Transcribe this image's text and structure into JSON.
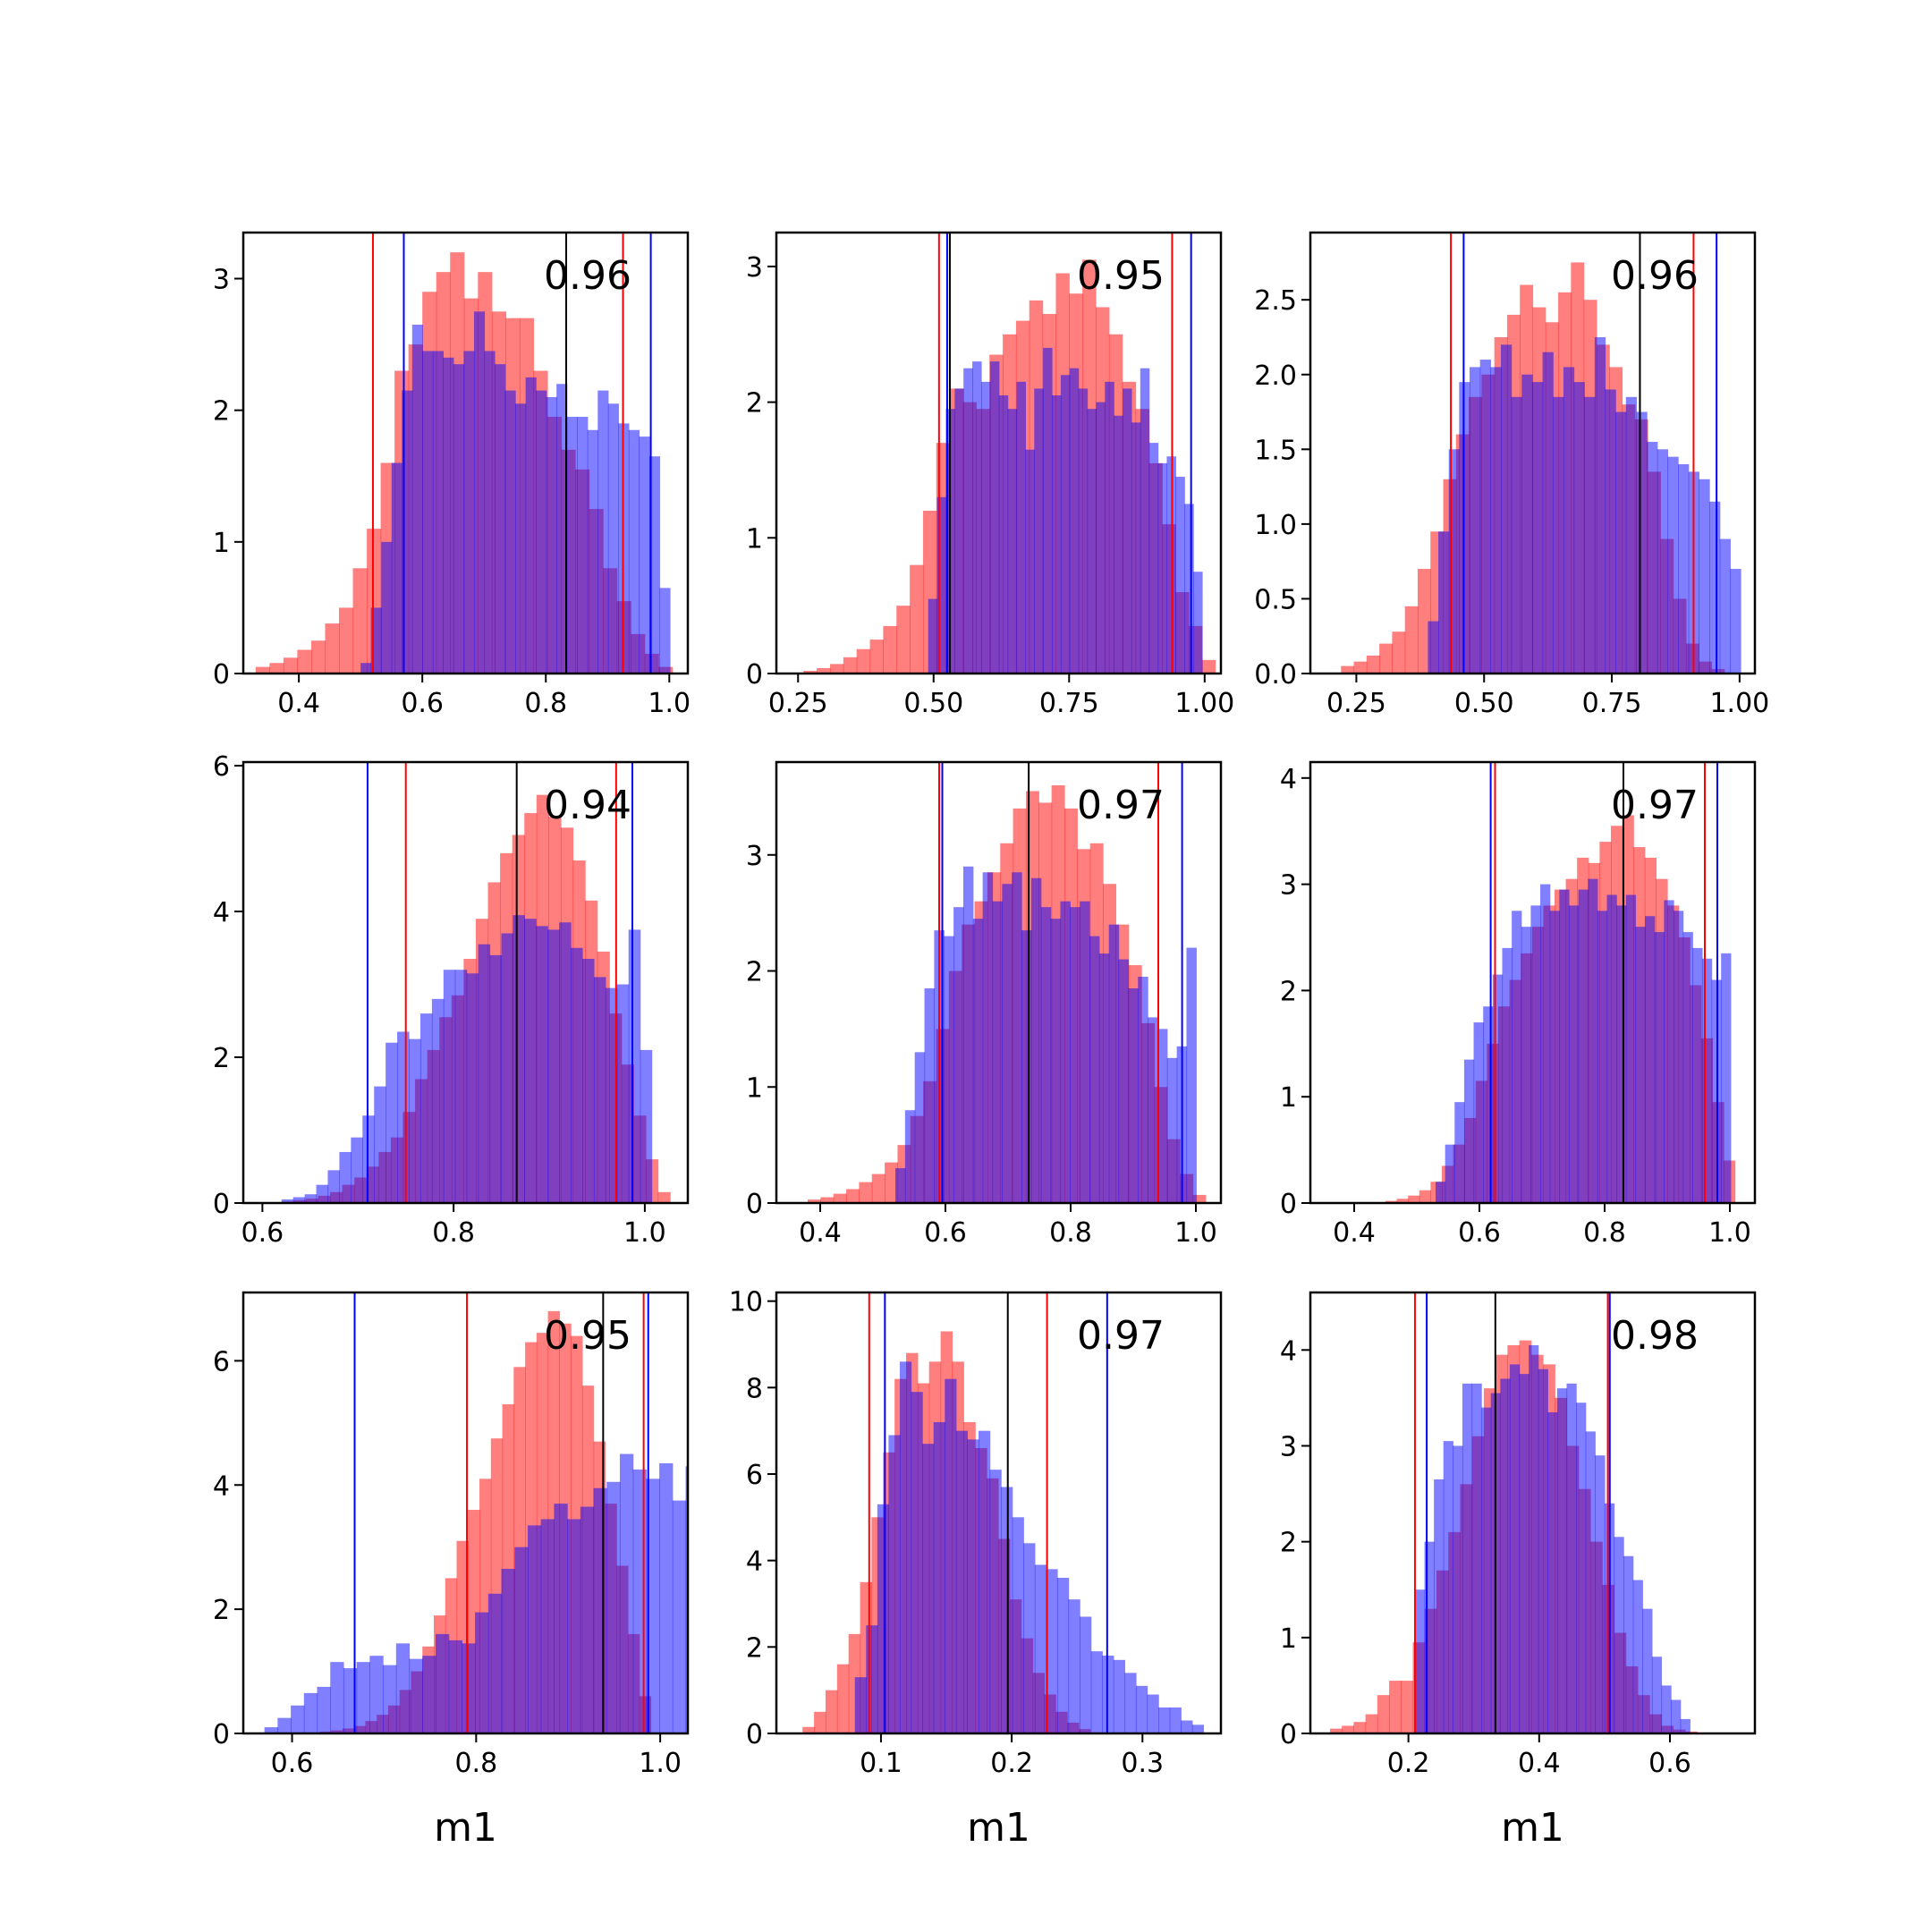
{
  "figure": {
    "colors": {
      "red_hist": "#ff0000",
      "blue_hist": "#0000ff",
      "red_line": "#ff0000",
      "blue_line": "#0000ff",
      "median_line": "#000000",
      "hist_alpha": 0.5
    }
  },
  "chart_data": [
    {
      "type": "histogram",
      "annotation": "0.96",
      "xlabel": "",
      "xlim": [
        0.31,
        1.03
      ],
      "ylim": [
        0,
        3.35
      ],
      "xticks": [
        {
          "v": 0.4,
          "label": "0.4"
        },
        {
          "v": 0.6,
          "label": "0.6"
        },
        {
          "v": 0.8,
          "label": "0.8"
        },
        {
          "v": 1.0,
          "label": "1.0"
        }
      ],
      "yticks": [
        {
          "v": 0,
          "label": "0"
        },
        {
          "v": 1,
          "label": "1"
        },
        {
          "v": 2,
          "label": "2"
        },
        {
          "v": 3,
          "label": "3"
        }
      ],
      "red": {
        "bin_start": 0.33,
        "bin_width": 0.0225,
        "values": [
          0.05,
          0.08,
          0.12,
          0.18,
          0.25,
          0.38,
          0.5,
          0.8,
          1.1,
          1.6,
          2.3,
          2.5,
          2.9,
          3.05,
          3.2,
          2.85,
          3.05,
          2.75,
          2.7,
          2.7,
          2.3,
          1.95,
          1.7,
          1.55,
          1.25,
          0.8,
          0.55,
          0.3,
          0.15,
          0.05
        ]
      },
      "blue": {
        "bin_start": 0.5,
        "bin_width": 0.0167,
        "values": [
          0.08,
          0.5,
          1.0,
          1.6,
          2.15,
          2.65,
          2.45,
          2.45,
          2.4,
          2.35,
          2.45,
          2.75,
          2.45,
          2.35,
          2.15,
          2.05,
          2.25,
          2.15,
          2.1,
          2.2,
          1.95,
          1.95,
          1.85,
          2.15,
          2.05,
          1.9,
          1.85,
          1.8,
          1.65,
          0.65
        ]
      },
      "vlines": {
        "red": [
          0.52,
          0.925
        ],
        "blue": [
          0.57,
          0.97
        ],
        "median": [
          0.833
        ]
      }
    },
    {
      "type": "histogram",
      "annotation": "0.95",
      "xlabel": "",
      "xlim": [
        0.21,
        1.03
      ],
      "ylim": [
        0,
        3.25
      ],
      "xticks": [
        {
          "v": 0.25,
          "label": "0.25"
        },
        {
          "v": 0.5,
          "label": "0.50"
        },
        {
          "v": 0.75,
          "label": "0.75"
        },
        {
          "v": 1.0,
          "label": "1.00"
        }
      ],
      "yticks": [
        {
          "v": 0,
          "label": "0"
        },
        {
          "v": 1,
          "label": "1"
        },
        {
          "v": 2,
          "label": "2"
        },
        {
          "v": 3,
          "label": "3"
        }
      ],
      "red": {
        "bin_start": 0.26,
        "bin_width": 0.0245,
        "values": [
          0.02,
          0.04,
          0.07,
          0.12,
          0.18,
          0.25,
          0.35,
          0.5,
          0.8,
          1.2,
          1.7,
          2.1,
          2.0,
          1.95,
          2.35,
          2.5,
          2.6,
          2.75,
          2.65,
          2.95,
          2.8,
          3.05,
          2.7,
          2.5,
          2.15,
          1.95,
          1.55,
          1.1,
          0.6,
          0.35,
          0.1
        ]
      },
      "blue": {
        "bin_start": 0.49,
        "bin_width": 0.0163,
        "values": [
          0.55,
          1.3,
          1.95,
          2.1,
          2.25,
          2.3,
          2.15,
          2.3,
          2.05,
          1.95,
          2.15,
          1.65,
          2.1,
          2.4,
          2.05,
          2.2,
          2.25,
          2.1,
          1.95,
          2.0,
          2.15,
          1.9,
          2.1,
          1.85,
          2.25,
          1.7,
          1.55,
          1.6,
          1.45,
          1.25,
          0.75
        ]
      },
      "vlines": {
        "red": [
          0.51,
          0.94
        ],
        "blue": [
          0.525,
          0.975
        ],
        "median": [
          0.53
        ]
      }
    },
    {
      "type": "histogram",
      "annotation": "0.96",
      "xlabel": "",
      "xlim": [
        0.16,
        1.03
      ],
      "ylim": [
        0,
        2.95
      ],
      "xticks": [
        {
          "v": 0.25,
          "label": "0.25"
        },
        {
          "v": 0.5,
          "label": "0.50"
        },
        {
          "v": 0.75,
          "label": "0.75"
        },
        {
          "v": 1.0,
          "label": "1.00"
        }
      ],
      "yticks": [
        {
          "v": 0,
          "label": "0.0"
        },
        {
          "v": 0.5,
          "label": "0.5"
        },
        {
          "v": 1.0,
          "label": "1.0"
        },
        {
          "v": 1.5,
          "label": "1.5"
        },
        {
          "v": 2.0,
          "label": "2.0"
        },
        {
          "v": 2.5,
          "label": "2.5"
        }
      ],
      "red": {
        "bin_start": 0.22,
        "bin_width": 0.025,
        "values": [
          0.05,
          0.08,
          0.12,
          0.2,
          0.28,
          0.45,
          0.7,
          0.95,
          1.3,
          1.6,
          1.85,
          2.0,
          2.25,
          2.4,
          2.6,
          2.45,
          2.35,
          2.55,
          2.75,
          2.5,
          2.2,
          2.05,
          1.8,
          1.7,
          1.35,
          0.9,
          0.5,
          0.2,
          0.08,
          0.03
        ]
      },
      "blue": {
        "bin_start": 0.39,
        "bin_width": 0.0204,
        "values": [
          0.35,
          0.95,
          1.5,
          1.95,
          2.05,
          2.1,
          2.05,
          2.2,
          1.85,
          2.0,
          1.95,
          2.15,
          1.85,
          2.05,
          1.95,
          1.85,
          2.25,
          1.9,
          1.75,
          1.85,
          1.75,
          1.55,
          1.5,
          1.45,
          1.4,
          1.35,
          1.3,
          1.15,
          0.9,
          0.7
        ]
      },
      "vlines": {
        "red": [
          0.435,
          0.91
        ],
        "blue": [
          0.46,
          0.955
        ],
        "median": [
          0.805
        ]
      }
    },
    {
      "type": "histogram",
      "annotation": "0.94",
      "xlabel": "",
      "xlim": [
        0.58,
        1.045
      ],
      "ylim": [
        0,
        6.05
      ],
      "xticks": [
        {
          "v": 0.6,
          "label": "0.6"
        },
        {
          "v": 0.8,
          "label": "0.8"
        },
        {
          "v": 1.0,
          "label": "1.0"
        }
      ],
      "yticks": [
        {
          "v": 0,
          "label": "0"
        },
        {
          "v": 2,
          "label": "2"
        },
        {
          "v": 4,
          "label": "4"
        },
        {
          "v": 6,
          "label": "6"
        }
      ],
      "red": {
        "bin_start": 0.62,
        "bin_width": 0.0127,
        "values": [
          0.02,
          0.04,
          0.06,
          0.1,
          0.15,
          0.25,
          0.35,
          0.5,
          0.7,
          0.9,
          1.25,
          1.7,
          2.1,
          2.55,
          2.85,
          3.35,
          3.9,
          4.4,
          4.8,
          5.05,
          5.35,
          5.6,
          5.3,
          5.15,
          4.7,
          4.15,
          3.45,
          2.6,
          1.9,
          1.2,
          0.6,
          0.15
        ]
      },
      "blue": {
        "bin_start": 0.62,
        "bin_width": 0.0121,
        "values": [
          0.05,
          0.08,
          0.12,
          0.25,
          0.45,
          0.7,
          0.9,
          1.2,
          1.6,
          2.2,
          2.35,
          2.25,
          2.6,
          2.8,
          3.2,
          3.2,
          3.15,
          3.55,
          3.4,
          3.7,
          3.95,
          3.9,
          3.8,
          3.75,
          3.85,
          3.5,
          3.35,
          3.1,
          2.95,
          3.0,
          3.75,
          2.1
        ]
      },
      "vlines": {
        "red": [
          0.75,
          0.97
        ],
        "blue": [
          0.71,
          0.987
        ],
        "median": [
          0.866
        ]
      }
    },
    {
      "type": "histogram",
      "annotation": "0.97",
      "xlabel": "",
      "xlim": [
        0.33,
        1.04
      ],
      "ylim": [
        0,
        3.8
      ],
      "xticks": [
        {
          "v": 0.4,
          "label": "0.4"
        },
        {
          "v": 0.6,
          "label": "0.6"
        },
        {
          "v": 0.8,
          "label": "0.8"
        },
        {
          "v": 1.0,
          "label": "1.0"
        }
      ],
      "yticks": [
        {
          "v": 0,
          "label": "0"
        },
        {
          "v": 1,
          "label": "1"
        },
        {
          "v": 2,
          "label": "2"
        },
        {
          "v": 3,
          "label": "3"
        }
      ],
      "red": {
        "bin_start": 0.38,
        "bin_width": 0.0205,
        "values": [
          0.03,
          0.05,
          0.08,
          0.12,
          0.18,
          0.25,
          0.35,
          0.5,
          0.75,
          1.05,
          1.5,
          2.0,
          2.4,
          2.6,
          2.85,
          3.1,
          3.4,
          3.55,
          3.45,
          3.6,
          3.4,
          3.05,
          3.1,
          2.75,
          2.4,
          2.05,
          1.55,
          1.0,
          0.55,
          0.25,
          0.07
        ]
      },
      "blue": {
        "bin_start": 0.52,
        "bin_width": 0.0155,
        "values": [
          0.3,
          0.8,
          1.3,
          1.85,
          2.35,
          2.3,
          2.55,
          2.9,
          2.45,
          2.85,
          2.6,
          2.75,
          2.85,
          2.35,
          2.8,
          2.55,
          2.45,
          2.6,
          2.55,
          2.6,
          2.3,
          2.15,
          2.4,
          2.1,
          1.85,
          1.95,
          1.6,
          1.5,
          1.25,
          1.35,
          2.2
        ]
      },
      "vlines": {
        "red": [
          0.59,
          0.94
        ],
        "blue": [
          0.595,
          0.978
        ],
        "median": [
          0.733
        ]
      }
    },
    {
      "type": "histogram",
      "annotation": "0.97",
      "xlabel": "",
      "xlim": [
        0.33,
        1.04
      ],
      "ylim": [
        0,
        4.15
      ],
      "xticks": [
        {
          "v": 0.4,
          "label": "0.4"
        },
        {
          "v": 0.6,
          "label": "0.6"
        },
        {
          "v": 0.8,
          "label": "0.8"
        },
        {
          "v": 1.0,
          "label": "1.0"
        }
      ],
      "yticks": [
        {
          "v": 0,
          "label": "0"
        },
        {
          "v": 1,
          "label": "1"
        },
        {
          "v": 2,
          "label": "2"
        },
        {
          "v": 3,
          "label": "3"
        },
        {
          "v": 4,
          "label": "4"
        }
      ],
      "red": {
        "bin_start": 0.45,
        "bin_width": 0.018,
        "values": [
          0.02,
          0.04,
          0.07,
          0.12,
          0.2,
          0.35,
          0.55,
          0.8,
          1.15,
          1.5,
          1.85,
          2.1,
          2.35,
          2.6,
          2.8,
          2.95,
          3.05,
          3.25,
          3.2,
          3.4,
          3.55,
          3.65,
          3.35,
          3.25,
          3.05,
          2.8,
          2.5,
          2.05,
          1.55,
          0.95,
          0.4
        ]
      },
      "blue": {
        "bin_start": 0.53,
        "bin_width": 0.0152,
        "values": [
          0.2,
          0.55,
          0.95,
          1.35,
          1.7,
          1.85,
          2.15,
          2.4,
          2.75,
          2.6,
          2.8,
          3.0,
          2.75,
          2.95,
          2.8,
          2.95,
          3.05,
          2.75,
          2.9,
          2.8,
          2.9,
          2.6,
          2.7,
          2.55,
          2.85,
          2.75,
          2.55,
          2.4,
          2.3,
          2.1,
          2.35
        ]
      },
      "vlines": {
        "red": [
          0.625,
          0.96
        ],
        "blue": [
          0.618,
          0.98
        ],
        "median": [
          0.83
        ]
      }
    },
    {
      "type": "histogram",
      "annotation": "0.95",
      "xlabel": "m1",
      "xlim": [
        0.547,
        1.03
      ],
      "ylim": [
        0,
        7.1
      ],
      "xticks": [
        {
          "v": 0.6,
          "label": "0.6"
        },
        {
          "v": 0.8,
          "label": "0.8"
        },
        {
          "v": 1.0,
          "label": "1.0"
        }
      ],
      "yticks": [
        {
          "v": 0,
          "label": "0"
        },
        {
          "v": 2,
          "label": "2"
        },
        {
          "v": 4,
          "label": "4"
        },
        {
          "v": 6,
          "label": "6"
        }
      ],
      "red": {
        "bin_start": 0.63,
        "bin_width": 0.0124,
        "values": [
          0.03,
          0.05,
          0.08,
          0.12,
          0.2,
          0.3,
          0.45,
          0.7,
          1.0,
          1.4,
          1.9,
          2.5,
          3.1,
          3.6,
          4.1,
          4.75,
          5.3,
          5.9,
          6.3,
          6.45,
          6.8,
          6.6,
          6.4,
          5.6,
          4.7,
          3.7,
          2.7,
          1.6,
          0.6
        ]
      },
      "blue": {
        "bin_start": 0.57,
        "bin_width": 0.0143,
        "values": [
          0.1,
          0.25,
          0.45,
          0.65,
          0.75,
          1.15,
          1.05,
          1.15,
          1.25,
          1.1,
          1.45,
          1.2,
          1.25,
          1.6,
          1.5,
          1.45,
          1.95,
          2.25,
          2.65,
          3.0,
          3.35,
          3.45,
          3.7,
          3.45,
          3.65,
          3.95,
          4.05,
          4.5,
          4.25,
          4.1,
          4.35,
          3.75,
          4.3
        ]
      },
      "vlines": {
        "red": [
          0.79,
          0.982
        ],
        "blue": [
          0.668,
          0.987
        ],
        "median": [
          0.938
        ]
      }
    },
    {
      "type": "histogram",
      "annotation": "0.97",
      "xlabel": "m1",
      "xlim": [
        0.02,
        0.36
      ],
      "ylim": [
        0,
        10.2
      ],
      "xticks": [
        {
          "v": 0.1,
          "label": "0.1"
        },
        {
          "v": 0.2,
          "label": "0.2"
        },
        {
          "v": 0.3,
          "label": "0.3"
        }
      ],
      "yticks": [
        {
          "v": 0,
          "label": "0"
        },
        {
          "v": 2,
          "label": "2"
        },
        {
          "v": 4,
          "label": "4"
        },
        {
          "v": 6,
          "label": "6"
        },
        {
          "v": 8,
          "label": "8"
        },
        {
          "v": 10,
          "label": "10"
        }
      ],
      "red": {
        "bin_start": 0.04,
        "bin_width": 0.0088,
        "values": [
          0.15,
          0.5,
          1.0,
          1.6,
          2.3,
          3.5,
          5.0,
          6.5,
          8.2,
          8.8,
          8.1,
          8.6,
          9.3,
          8.6,
          7.2,
          6.6,
          5.9,
          4.5,
          3.1,
          2.2,
          1.4,
          0.9,
          0.5,
          0.25,
          0.1
        ]
      },
      "blue": {
        "bin_start": 0.08,
        "bin_width": 0.0086,
        "values": [
          1.3,
          2.5,
          5.3,
          6.9,
          8.6,
          7.9,
          6.7,
          7.2,
          8.2,
          7.0,
          6.8,
          7.0,
          6.1,
          5.7,
          5.0,
          4.4,
          3.9,
          3.8,
          3.6,
          3.1,
          2.7,
          1.9,
          1.8,
          1.7,
          1.4,
          1.1,
          0.9,
          0.6,
          0.6,
          0.3,
          0.2
        ]
      },
      "vlines": {
        "red": [
          0.091,
          0.227
        ],
        "blue": [
          0.103,
          0.273
        ],
        "median": [
          0.197
        ]
      }
    },
    {
      "type": "histogram",
      "annotation": "0.98",
      "xlabel": "m1",
      "xlim": [
        0.05,
        0.73
      ],
      "ylim": [
        0,
        4.6
      ],
      "xticks": [
        {
          "v": 0.2,
          "label": "0.2"
        },
        {
          "v": 0.4,
          "label": "0.4"
        },
        {
          "v": 0.6,
          "label": "0.6"
        }
      ],
      "yticks": [
        {
          "v": 0,
          "label": "0"
        },
        {
          "v": 1,
          "label": "1"
        },
        {
          "v": 2,
          "label": "2"
        },
        {
          "v": 3,
          "label": "3"
        },
        {
          "v": 4,
          "label": "4"
        }
      ],
      "red": {
        "bin_start": 0.08,
        "bin_width": 0.0181,
        "values": [
          0.05,
          0.08,
          0.12,
          0.2,
          0.4,
          0.55,
          0.55,
          0.95,
          1.3,
          1.7,
          2.1,
          2.6,
          3.1,
          3.6,
          3.95,
          4.05,
          4.1,
          3.95,
          3.85,
          3.5,
          3.0,
          2.55,
          2.0,
          1.55,
          1.05,
          0.7,
          0.4,
          0.2,
          0.08,
          0.04,
          0.02
        ]
      },
      "blue": {
        "bin_start": 0.21,
        "bin_width": 0.0145,
        "values": [
          1.5,
          2.0,
          2.65,
          3.05,
          3.0,
          3.65,
          3.65,
          3.4,
          3.55,
          3.7,
          3.85,
          3.75,
          4.05,
          3.8,
          3.35,
          3.6,
          3.65,
          3.45,
          3.15,
          2.9,
          2.4,
          2.05,
          1.85,
          1.6,
          1.3,
          0.8,
          0.5,
          0.35,
          0.15
        ]
      },
      "vlines": {
        "red": [
          0.21,
          0.505
        ],
        "blue": [
          0.228,
          0.508
        ],
        "median": [
          0.333
        ]
      }
    }
  ]
}
